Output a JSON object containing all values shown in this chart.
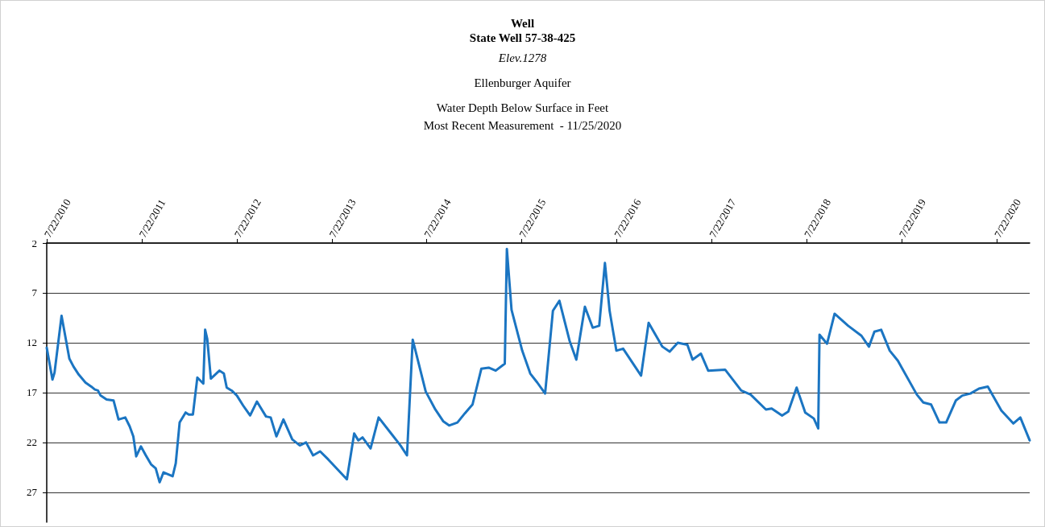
{
  "chart_data": {
    "type": "line",
    "title": "Well\nState Well 57-38-425",
    "subtitle": "Elev.1278",
    "annotations": [
      "Ellenburger Aquifer",
      "Water Depth Below Surface in Feet\nMost Recent Measurement  - 11/25/2020"
    ],
    "x": [
      "2010-07-22",
      "2010-08-13",
      "2010-08-21",
      "2010-09-17",
      "2010-10-17",
      "2010-11-02",
      "2010-11-22",
      "2010-12-18",
      "2011-01-09",
      "2011-01-23",
      "2011-02-04",
      "2011-02-14",
      "2011-03-09",
      "2011-04-05",
      "2011-04-24",
      "2011-05-20",
      "2011-06-06",
      "2011-06-20",
      "2011-07-01",
      "2011-07-19",
      "2011-08-07",
      "2011-08-27",
      "2011-09-14",
      "2011-09-29",
      "2011-10-14",
      "2011-11-18",
      "2011-11-30",
      "2011-12-15",
      "2012-01-07",
      "2012-01-19",
      "2012-02-04",
      "2012-02-21",
      "2012-03-15",
      "2012-03-22",
      "2012-03-30",
      "2012-04-13",
      "2012-05-16",
      "2012-06-02",
      "2012-06-13",
      "2012-07-02",
      "2012-07-22",
      "2012-08-15",
      "2012-09-11",
      "2012-10-07",
      "2012-11-11",
      "2012-11-29",
      "2012-12-21",
      "2013-01-17",
      "2013-02-20",
      "2013-03-21",
      "2013-04-14",
      "2013-05-11",
      "2013-06-07",
      "2013-07-08",
      "2013-09-18",
      "2013-10-16",
      "2013-11-01",
      "2013-11-17",
      "2013-12-18",
      "2014-01-18",
      "2014-03-07",
      "2014-04-12",
      "2014-05-07",
      "2014-05-29",
      "2014-07-18",
      "2014-08-24",
      "2014-09-24",
      "2014-10-16",
      "2014-11-17",
      "2014-12-15",
      "2015-01-14",
      "2015-02-17",
      "2015-03-17",
      "2015-04-13",
      "2015-05-18",
      "2015-05-26",
      "2015-06-13",
      "2015-07-24",
      "2015-08-24",
      "2015-09-20",
      "2015-10-20",
      "2015-11-19",
      "2015-12-14",
      "2016-01-22",
      "2016-02-17",
      "2016-03-21",
      "2016-04-20",
      "2016-05-15",
      "2016-06-06",
      "2016-06-24",
      "2016-07-20",
      "2016-08-15",
      "2016-10-23",
      "2016-11-21",
      "2016-12-15",
      "2017-01-13",
      "2017-02-10",
      "2017-03-13",
      "2017-04-19",
      "2017-05-09",
      "2017-06-10",
      "2017-07-08",
      "2017-09-11",
      "2017-11-12",
      "2017-12-18",
      "2018-02-15",
      "2018-03-09",
      "2018-04-18",
      "2018-05-12",
      "2018-06-13",
      "2018-07-16",
      "2018-08-18",
      "2018-09-04",
      "2018-09-09",
      "2018-10-08",
      "2018-11-06",
      "2018-12-28",
      "2019-02-17",
      "2019-03-18",
      "2019-04-08",
      "2019-05-04",
      "2019-06-06",
      "2019-07-07",
      "2019-09-18",
      "2019-10-13",
      "2019-11-12",
      "2019-12-14",
      "2020-01-09",
      "2020-02-15",
      "2020-03-11",
      "2020-04-11",
      "2020-05-14",
      "2020-06-17",
      "2020-08-08",
      "2020-09-23",
      "2020-10-20",
      "2020-11-25"
    ],
    "series": [
      {
        "color": "#1b75c2",
        "values": [
          12.5,
          15.7,
          15.0,
          9.3,
          13.6,
          14.4,
          15.2,
          16.0,
          16.4,
          16.7,
          16.8,
          17.3,
          17.7,
          17.8,
          19.7,
          19.5,
          20.4,
          21.4,
          23.4,
          22.4,
          23.3,
          24.2,
          24.6,
          26.0,
          25.0,
          25.4,
          24.1,
          20.0,
          19.0,
          19.2,
          19.2,
          15.5,
          16.1,
          10.7,
          11.6,
          15.6,
          14.8,
          15.1,
          16.5,
          16.8,
          17.3,
          18.3,
          19.3,
          17.9,
          19.4,
          19.5,
          21.4,
          19.7,
          21.7,
          22.3,
          22.0,
          23.3,
          22.9,
          23.7,
          25.7,
          21.1,
          21.8,
          21.5,
          22.6,
          19.5,
          21.1,
          22.3,
          23.3,
          11.7,
          16.9,
          18.7,
          19.9,
          20.3,
          20.0,
          19.1,
          18.2,
          14.6,
          14.5,
          14.8,
          14.1,
          2.6,
          8.7,
          12.8,
          15.1,
          16.0,
          17.1,
          8.8,
          7.8,
          11.8,
          13.7,
          8.4,
          10.5,
          10.3,
          4.0,
          8.8,
          12.8,
          12.6,
          15.3,
          10.0,
          11.1,
          12.4,
          12.9,
          12.0,
          12.2,
          13.7,
          13.1,
          14.8,
          14.7,
          16.8,
          17.2,
          18.7,
          18.6,
          19.3,
          18.9,
          16.5,
          19.0,
          19.6,
          20.6,
          11.2,
          12.1,
          9.1,
          10.3,
          11.3,
          12.4,
          10.9,
          10.7,
          12.8,
          13.8,
          17.2,
          18.0,
          18.2,
          20.0,
          20.0,
          17.8,
          17.3,
          17.1,
          16.6,
          16.4,
          18.8,
          20.1,
          19.5,
          21.8
        ]
      }
    ],
    "xlim": [
      "2010-07-22",
      "2020-11-25"
    ],
    "xticks": [
      {
        "value": "2010-07-22",
        "label": "7/22/2010"
      },
      {
        "value": "2011-07-22",
        "label": "7/22/2011"
      },
      {
        "value": "2012-07-22",
        "label": "7/22/2012"
      },
      {
        "value": "2013-07-22",
        "label": "7/22/2013"
      },
      {
        "value": "2014-07-22",
        "label": "7/22/2014"
      },
      {
        "value": "2015-07-22",
        "label": "7/22/2015"
      },
      {
        "value": "2016-07-22",
        "label": "7/22/2016"
      },
      {
        "value": "2017-07-22",
        "label": "7/22/2017"
      },
      {
        "value": "2018-07-22",
        "label": "7/22/2018"
      },
      {
        "value": "2019-07-22",
        "label": "7/22/2019"
      },
      {
        "value": "2020-07-22",
        "label": "7/22/2020"
      }
    ],
    "ylim": [
      30,
      2
    ],
    "yticks": [
      2,
      7,
      12,
      17,
      22,
      27
    ],
    "grid": "y",
    "marker": "none",
    "line_style": "solid"
  }
}
